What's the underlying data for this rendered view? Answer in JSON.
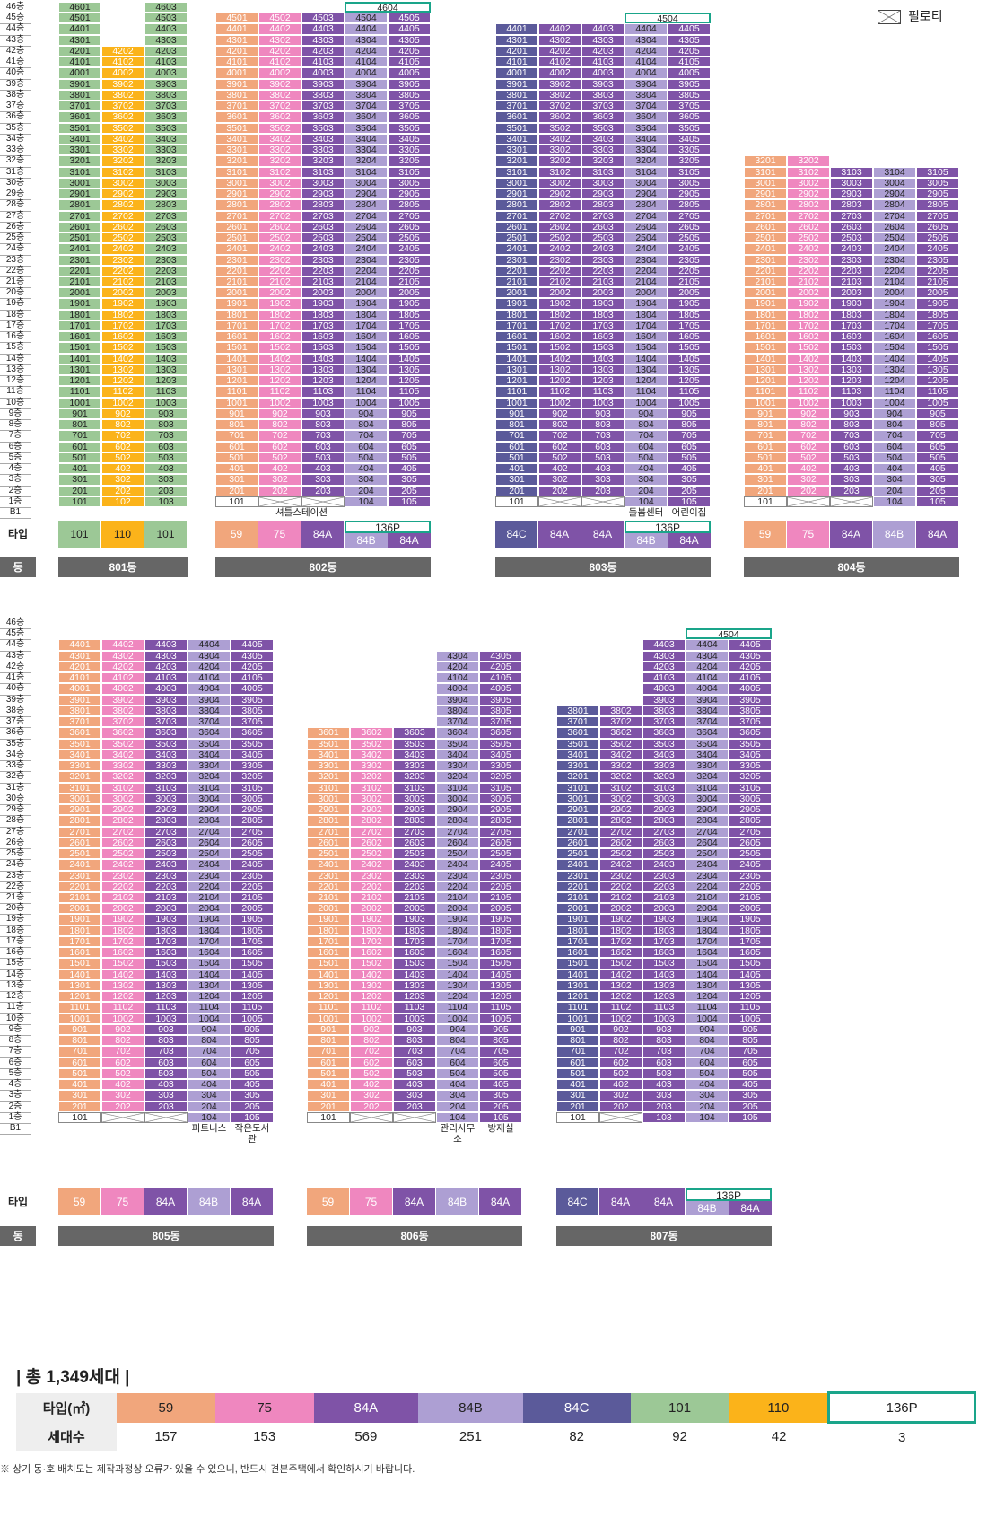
{
  "legend": {
    "piloti_label": "필로티",
    "piloti_icon": "envelope-cross-icon"
  },
  "row_labels": {
    "type": "타입",
    "dong": "동"
  },
  "colors": {
    "59": "#f1a67c",
    "75": "#ef87bf",
    "84A": "#7f53a7",
    "84B": "#ad9fd3",
    "84C": "#5b5a9a",
    "101": "#9cc896",
    "110": "#fbb31a",
    "136P": "#1aa58a"
  },
  "floors_top": [
    "46층",
    "45층",
    "44층",
    "43층",
    "42층",
    "41층",
    "40층",
    "39층",
    "38층",
    "37층",
    "36층",
    "35층",
    "34층",
    "33층",
    "32층",
    "31층",
    "30층",
    "29층",
    "28층",
    "27층",
    "26층",
    "25층",
    "24층",
    "23층",
    "22층",
    "21층",
    "20층",
    "19층",
    "18층",
    "17층",
    "16층",
    "15층",
    "14층",
    "13층",
    "12층",
    "11층",
    "10층",
    "9층",
    "8층",
    "7층",
    "6층",
    "5층",
    "4층",
    "3층",
    "2층",
    "1층",
    "B1"
  ],
  "floors_bottom": [
    "46층",
    "45층",
    "44층",
    "43층",
    "42층",
    "41층",
    "40층",
    "39층",
    "38층",
    "37층",
    "36층",
    "35층",
    "34층",
    "33층",
    "32층",
    "31층",
    "30층",
    "29층",
    "28층",
    "27층",
    "26층",
    "25층",
    "24층",
    "23층",
    "22층",
    "21층",
    "20층",
    "19층",
    "18층",
    "17층",
    "16층",
    "15층",
    "14층",
    "13층",
    "12층",
    "11층",
    "10층",
    "9층",
    "8층",
    "7층",
    "6층",
    "5층",
    "4층",
    "3층",
    "2층",
    "1층",
    "B1"
  ],
  "buildings": [
    {
      "name": "801동",
      "x": 65,
      "top": true,
      "cols": [
        {
          "type": "101",
          "max": 46
        },
        {
          "type": "110",
          "max": 42
        },
        {
          "type": "101",
          "max": 46
        }
      ],
      "x_cells": [],
      "facilities": [],
      "types": [
        "101",
        "110",
        "101"
      ],
      "penthouse": null
    },
    {
      "name": "802동",
      "x": 240,
      "top": true,
      "cols": [
        {
          "type": "59",
          "max": 45
        },
        {
          "type": "75",
          "max": 45
        },
        {
          "type": "84A",
          "max": 45
        },
        {
          "type": "84B",
          "max": 45
        },
        {
          "type": "84A",
          "max": 45
        }
      ],
      "x_cells": [
        "1-2",
        "1-3"
      ],
      "facilities": [
        {
          "col": 1,
          "span": 2,
          "text": "셔틀스테이션"
        }
      ],
      "types": [
        "59",
        "75",
        "84A",
        "136P"
      ],
      "bottom_types": [
        "84B",
        "84A"
      ],
      "penthouse": {
        "col": 3,
        "span": 2,
        "floor": 46,
        "label": "4604",
        "type_label": "136P"
      }
    },
    {
      "name": "803동",
      "x": 552,
      "top": true,
      "cols": [
        {
          "type": "84C",
          "max": 44
        },
        {
          "type": "84A",
          "max": 44
        },
        {
          "type": "84A",
          "max": 44
        },
        {
          "type": "84B",
          "max": 44
        },
        {
          "type": "84A",
          "max": 44
        }
      ],
      "x_cells": [
        "1-2",
        "1-3"
      ],
      "facilities": [
        {
          "col": 3,
          "span": 1,
          "text": "돌봄센터"
        },
        {
          "col": 4,
          "span": 1,
          "text": "어린이집"
        }
      ],
      "types": [
        "84C",
        "84A",
        "84A",
        "136P"
      ],
      "bottom_types": [
        "84B",
        "84A"
      ],
      "penthouse": {
        "col": 3,
        "span": 2,
        "floor": 45,
        "label": "4504",
        "type_label": "136P"
      }
    },
    {
      "name": "804동",
      "x": 829,
      "top": true,
      "cols": [
        {
          "type": "59",
          "max": 32
        },
        {
          "type": "75",
          "max": 32
        },
        {
          "type": "84A",
          "max": 31
        },
        {
          "type": "84B",
          "max": 31
        },
        {
          "type": "84A",
          "max": 31
        }
      ],
      "x_cells": [
        "1-2",
        "1-3"
      ],
      "facilities": [],
      "types": [
        "59",
        "75",
        "84A",
        "84B",
        "84A"
      ],
      "penthouse": null
    },
    {
      "name": "805동",
      "x": 65,
      "top": false,
      "cols": [
        {
          "type": "59",
          "max": 44
        },
        {
          "type": "75",
          "max": 44
        },
        {
          "type": "84A",
          "max": 44
        },
        {
          "type": "84B",
          "max": 44
        },
        {
          "type": "84A",
          "max": 44
        }
      ],
      "x_cells": [
        "1-2",
        "1-3"
      ],
      "facilities": [
        {
          "col": 3,
          "span": 1,
          "text": "피트니스"
        },
        {
          "col": 4,
          "span": 1,
          "text": "작은도서관"
        }
      ],
      "types": [
        "59",
        "75",
        "84A",
        "84B",
        "84A"
      ],
      "penthouse": null
    },
    {
      "name": "806동",
      "x": 342,
      "top": false,
      "cols": [
        {
          "type": "59",
          "max": 36
        },
        {
          "type": "75",
          "max": 36
        },
        {
          "type": "84A",
          "max": 36
        },
        {
          "type": "84B",
          "max": 43
        },
        {
          "type": "84A",
          "max": 43
        }
      ],
      "x_cells": [
        "1-2",
        "1-3"
      ],
      "facilities": [
        {
          "col": 3,
          "span": 1,
          "text": "관리사무소"
        },
        {
          "col": 4,
          "span": 1,
          "text": "방재실"
        }
      ],
      "types": [
        "59",
        "75",
        "84A",
        "84B",
        "84A"
      ],
      "penthouse": null
    },
    {
      "name": "807동",
      "x": 620,
      "top": false,
      "cols": [
        {
          "type": "84C",
          "max": 38
        },
        {
          "type": "84A",
          "max": 38
        },
        {
          "type": "84A",
          "max": 44
        },
        {
          "type": "84B",
          "max": 44
        },
        {
          "type": "84A",
          "max": 44
        }
      ],
      "x_cells": [
        "1-2"
      ],
      "facilities": [],
      "types": [
        "84C",
        "84A",
        "84A",
        "136P"
      ],
      "bottom_types": [
        "84B",
        "84A"
      ],
      "penthouse": {
        "col": 3,
        "span": 2,
        "floor": 45,
        "label": "4504",
        "type_label": "136P"
      }
    }
  ],
  "summary": {
    "total": "| 총 1,349세대 |",
    "header_label": "타입(㎡)",
    "count_label": "세대수",
    "items": [
      {
        "type": "59",
        "count": "157"
      },
      {
        "type": "75",
        "count": "153"
      },
      {
        "type": "84A",
        "count": "569"
      },
      {
        "type": "84B",
        "count": "251"
      },
      {
        "type": "84C",
        "count": "82"
      },
      {
        "type": "101",
        "count": "92"
      },
      {
        "type": "110",
        "count": "42"
      },
      {
        "type": "136P",
        "count": "3"
      }
    ]
  },
  "note": "※ 상기 동·호 배치도는 제작과정상 오류가 있을 수 있으니, 반드시 견본주택에서 확인하시기 바랍니다."
}
